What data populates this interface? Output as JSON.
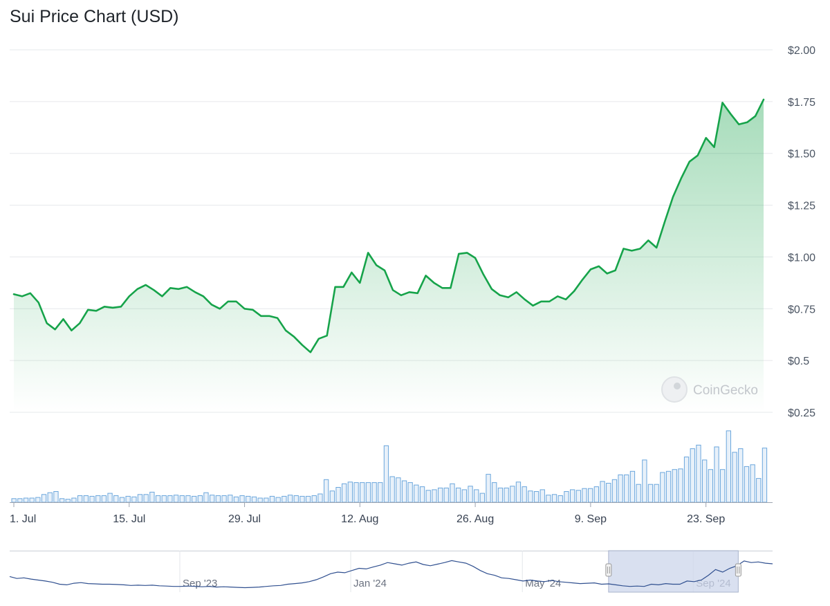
{
  "chart_data": {
    "type": "line",
    "title": "Sui Price Chart (USD)",
    "watermark": "CoinGecko",
    "y_ticks": [
      "$0.25",
      "$0.5",
      "$0.75",
      "$1.00",
      "$1.25",
      "$1.50",
      "$1.75",
      "$2.00"
    ],
    "y_tick_values": [
      0.25,
      0.5,
      0.75,
      1.0,
      1.25,
      1.5,
      1.75,
      2.0
    ],
    "ylim": [
      0.25,
      2.0
    ],
    "x_ticks": [
      "1. Jul",
      "15. Jul",
      "29. Jul",
      "12. Aug",
      "26. Aug",
      "9. Sep",
      "23. Sep"
    ],
    "x_tick_days": [
      0,
      14,
      28,
      42,
      56,
      70,
      84
    ],
    "xlim_days": [
      0,
      91.5
    ],
    "line_color": "#16a34a",
    "series": [
      {
        "values": [
          [
            0,
            0.82
          ],
          [
            1,
            0.81
          ],
          [
            2,
            0.825
          ],
          [
            3,
            0.78
          ],
          [
            4,
            0.68
          ],
          [
            5,
            0.65
          ],
          [
            6,
            0.7
          ],
          [
            7,
            0.645
          ],
          [
            8,
            0.68
          ],
          [
            9,
            0.745
          ],
          [
            10,
            0.74
          ],
          [
            11,
            0.76
          ],
          [
            12,
            0.755
          ],
          [
            13,
            0.76
          ],
          [
            14,
            0.81
          ],
          [
            15,
            0.845
          ],
          [
            16,
            0.865
          ],
          [
            17,
            0.84
          ],
          [
            18,
            0.81
          ],
          [
            19,
            0.85
          ],
          [
            20,
            0.845
          ],
          [
            21,
            0.855
          ],
          [
            22,
            0.83
          ],
          [
            23,
            0.81
          ],
          [
            24,
            0.77
          ],
          [
            25,
            0.75
          ],
          [
            26,
            0.785
          ],
          [
            27,
            0.785
          ],
          [
            28,
            0.75
          ],
          [
            29,
            0.745
          ],
          [
            30,
            0.715
          ],
          [
            31,
            0.715
          ],
          [
            32,
            0.705
          ],
          [
            33,
            0.645
          ],
          [
            34,
            0.615
          ],
          [
            35,
            0.575
          ],
          [
            36,
            0.54
          ],
          [
            37,
            0.605
          ],
          [
            38,
            0.62
          ],
          [
            39,
            0.855
          ],
          [
            40,
            0.855
          ],
          [
            41,
            0.925
          ],
          [
            42,
            0.875
          ],
          [
            43,
            1.02
          ],
          [
            44,
            0.96
          ],
          [
            45,
            0.935
          ],
          [
            46,
            0.84
          ],
          [
            47,
            0.815
          ],
          [
            48,
            0.83
          ],
          [
            49,
            0.825
          ],
          [
            50,
            0.91
          ],
          [
            51,
            0.875
          ],
          [
            52,
            0.85
          ],
          [
            53,
            0.85
          ],
          [
            54,
            1.015
          ],
          [
            55,
            1.02
          ],
          [
            56,
            0.995
          ],
          [
            57,
            0.915
          ],
          [
            58,
            0.845
          ],
          [
            59,
            0.815
          ],
          [
            60,
            0.805
          ],
          [
            61,
            0.83
          ],
          [
            62,
            0.795
          ],
          [
            63,
            0.765
          ],
          [
            64,
            0.785
          ],
          [
            65,
            0.785
          ],
          [
            66,
            0.81
          ],
          [
            67,
            0.795
          ],
          [
            68,
            0.835
          ],
          [
            69,
            0.89
          ],
          [
            70,
            0.94
          ],
          [
            71,
            0.955
          ],
          [
            72,
            0.92
          ],
          [
            73,
            0.935
          ],
          [
            74,
            1.04
          ],
          [
            75,
            1.03
          ],
          [
            76,
            1.04
          ],
          [
            77,
            1.08
          ],
          [
            78,
            1.045
          ],
          [
            79,
            1.17
          ],
          [
            80,
            1.29
          ],
          [
            81,
            1.38
          ],
          [
            82,
            1.46
          ],
          [
            83,
            1.49
          ],
          [
            84,
            1.575
          ],
          [
            85,
            1.53
          ],
          [
            86,
            1.745
          ],
          [
            87,
            1.69
          ],
          [
            88,
            1.64
          ],
          [
            89,
            1.65
          ],
          [
            90,
            1.68
          ],
          [
            91,
            1.76
          ]
        ]
      }
    ],
    "volume": {
      "color": "#6aa6dc",
      "ylim": [
        0,
        100
      ],
      "values": [
        6,
        6,
        7,
        7,
        8,
        13,
        16,
        18,
        6,
        5,
        7,
        11,
        11,
        10,
        11,
        11,
        15,
        11,
        8,
        10,
        9,
        13,
        13,
        17,
        11,
        11,
        11,
        12,
        11,
        11,
        10,
        11,
        16,
        12,
        11,
        11,
        12,
        9,
        11,
        10,
        9,
        7,
        7,
        10,
        8,
        10,
        12,
        11,
        10,
        10,
        11,
        14,
        38,
        19,
        25,
        31,
        34,
        33,
        33,
        33,
        33,
        33,
        95,
        43,
        41,
        36,
        33,
        29,
        26,
        20,
        21,
        24,
        24,
        31,
        24,
        21,
        27,
        21,
        15,
        47,
        33,
        24,
        24,
        27,
        34,
        26,
        19,
        18,
        21,
        12,
        13,
        11,
        18,
        21,
        20,
        23,
        23,
        26,
        35,
        32,
        38,
        46,
        46,
        52,
        30,
        71,
        30,
        30,
        50,
        52,
        55,
        56,
        76,
        90,
        96,
        71,
        55,
        93,
        55,
        120,
        84,
        90,
        60,
        63,
        40,
        91
      ]
    },
    "navigator": {
      "labels": [
        "Sep '23",
        "Jan '24",
        "May '24",
        "Sep '24"
      ],
      "selection": [
        0.785,
        0.955
      ],
      "values": [
        0.36,
        0.3,
        0.32,
        0.28,
        0.25,
        0.22,
        0.18,
        0.12,
        0.1,
        0.15,
        0.17,
        0.14,
        0.13,
        0.12,
        0.12,
        0.11,
        0.1,
        0.08,
        0.09,
        0.08,
        0.09,
        0.07,
        0.06,
        0.05,
        0.05,
        0.06,
        0.05,
        0.04,
        0.05,
        0.03,
        0.04,
        0.03,
        0.02,
        0.01,
        0.02,
        0.03,
        0.05,
        0.07,
        0.08,
        0.12,
        0.14,
        0.16,
        0.2,
        0.26,
        0.35,
        0.45,
        0.5,
        0.48,
        0.55,
        0.62,
        0.6,
        0.66,
        0.72,
        0.8,
        0.76,
        0.72,
        0.78,
        0.82,
        0.74,
        0.7,
        0.75,
        0.8,
        0.86,
        0.82,
        0.78,
        0.68,
        0.55,
        0.45,
        0.4,
        0.32,
        0.3,
        0.26,
        0.22,
        0.25,
        0.22,
        0.2,
        0.24,
        0.2,
        0.18,
        0.16,
        0.14,
        0.15,
        0.16,
        0.12,
        0.13,
        0.1,
        0.07,
        0.05,
        0.06,
        0.05,
        0.12,
        0.1,
        0.14,
        0.12,
        0.12,
        0.22,
        0.2,
        0.25,
        0.4,
        0.58,
        0.5,
        0.62,
        0.7,
        0.85,
        0.8,
        0.82,
        0.78,
        0.76
      ]
    }
  }
}
